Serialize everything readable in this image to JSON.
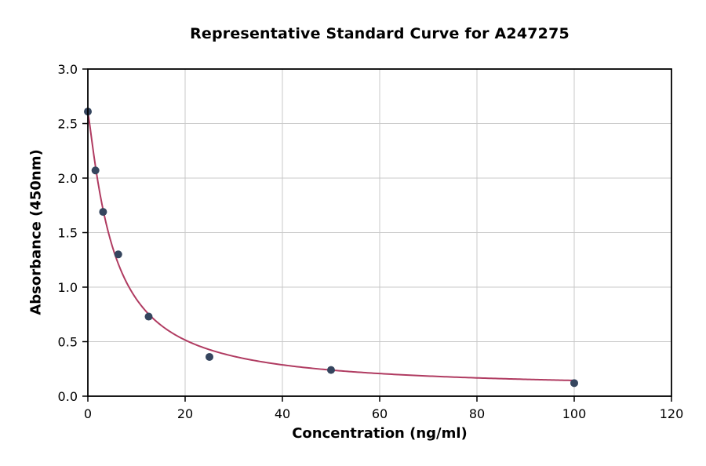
{
  "page": {
    "background": "#ffffff"
  },
  "chart_data": {
    "type": "scatter",
    "title": "Representative Standard Curve for A247275",
    "xlabel": "Concentration (ng/ml)",
    "ylabel": "Absorbance (450nm)",
    "xlim": [
      0,
      120
    ],
    "ylim": [
      0,
      3.0
    ],
    "x_ticks": [
      0,
      20,
      40,
      60,
      80,
      100,
      120
    ],
    "y_ticks": [
      0.0,
      0.5,
      1.0,
      1.5,
      2.0,
      2.5,
      3.0
    ],
    "grid": true,
    "legend": "none",
    "points": [
      {
        "x": 0,
        "y": 2.61
      },
      {
        "x": 1.56,
        "y": 2.07
      },
      {
        "x": 3.13,
        "y": 1.69
      },
      {
        "x": 6.25,
        "y": 1.3
      },
      {
        "x": 12.5,
        "y": 0.73
      },
      {
        "x": 25,
        "y": 0.36
      },
      {
        "x": 50,
        "y": 0.24
      },
      {
        "x": 100,
        "y": 0.12
      }
    ],
    "curve_fit": {
      "model": "4PL",
      "a": 2.61,
      "b": 1.15,
      "c": 5.3,
      "d": 0.06,
      "x_range": [
        0,
        100
      ]
    },
    "colors": {
      "curve": "#b03b61",
      "points": "#35455e",
      "grid": "#c9c9c9",
      "axis": "#000000",
      "text": "#000000"
    }
  }
}
